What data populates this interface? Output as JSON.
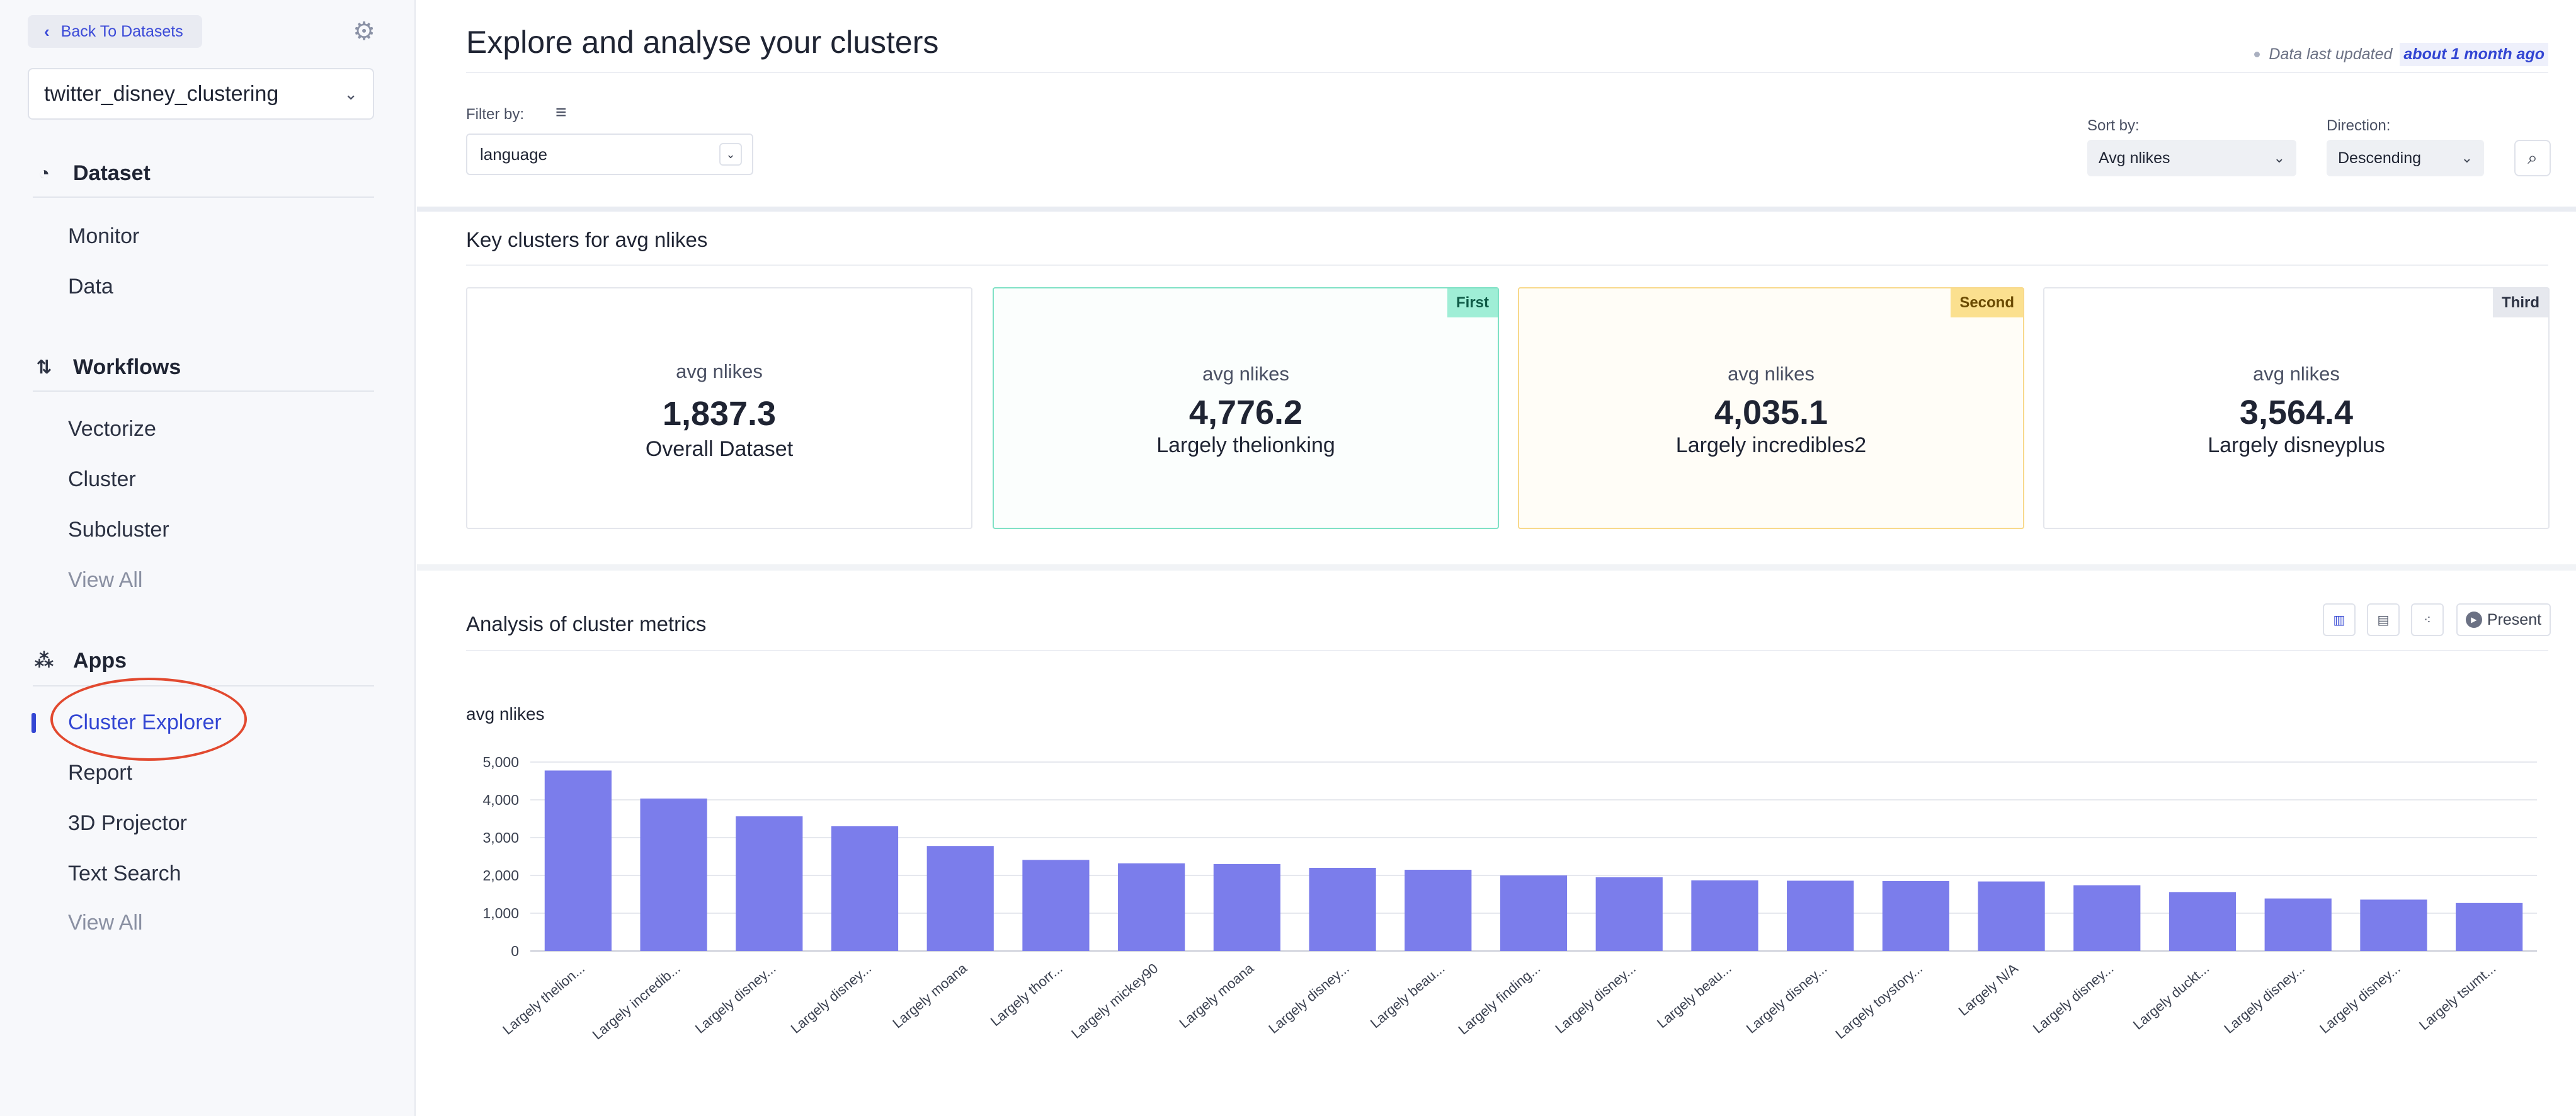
{
  "sidebar": {
    "back_label": "Back To Datasets",
    "dataset_name": "twitter_disney_clustering",
    "sections": {
      "dataset": {
        "title": "Dataset",
        "items": [
          "Monitor",
          "Data"
        ]
      },
      "workflows": {
        "title": "Workflows",
        "items": [
          "Vectorize",
          "Cluster",
          "Subcluster"
        ],
        "view_all": "View All"
      },
      "apps": {
        "title": "Apps",
        "items": [
          "Cluster Explorer",
          "Report",
          "3D Projector",
          "Text Search"
        ],
        "view_all": "View All",
        "active": "Cluster Explorer"
      }
    }
  },
  "header": {
    "title": "Explore and analyse your clusters",
    "updated_prefix": "Data last updated",
    "updated_value": "about 1 month ago"
  },
  "filters": {
    "filter_label": "Filter by:",
    "filter_value": "language",
    "sort_label": "Sort by:",
    "sort_value": "Avg nlikes",
    "direction_label": "Direction:",
    "direction_value": "Descending"
  },
  "key_clusters": {
    "title": "Key clusters for avg nlikes",
    "cards": [
      {
        "metric": "avg nlikes",
        "value": "1,837.3",
        "name": "Overall Dataset",
        "badge": ""
      },
      {
        "metric": "avg nlikes",
        "value": "4,776.2",
        "name": "Largely thelionking",
        "badge": "First"
      },
      {
        "metric": "avg nlikes",
        "value": "4,035.1",
        "name": "Largely incredibles2",
        "badge": "Second"
      },
      {
        "metric": "avg nlikes",
        "value": "3,564.4",
        "name": "Largely disneyplus",
        "badge": "Third"
      }
    ]
  },
  "analysis": {
    "title": "Analysis of cluster metrics",
    "present_label": "Present"
  },
  "colors": {
    "accent": "#3346d3",
    "bar": "#7b7deb"
  },
  "chart_data": {
    "type": "bar",
    "title": "avg nlikes",
    "xlabel": "",
    "ylabel": "",
    "ylim": [
      0,
      5000
    ],
    "yticks": [
      "0",
      "1,000",
      "2,000",
      "3,000",
      "4,000",
      "5,000"
    ],
    "grid": true,
    "categories": [
      "Largely thelion...",
      "Largely incredib...",
      "Largely disney...",
      "Largely disney...",
      "Largely moana",
      "Largely thorr...",
      "Largely mickey90",
      "Largely moana",
      "Largely disney...",
      "Largely beau...",
      "Largely finding...",
      "Largely disney...",
      "Largely beau...",
      "Largely disney...",
      "Largely toystory...",
      "Largely N/A",
      "Largely disney...",
      "Largely duckt...",
      "Largely disney...",
      "Largely disney...",
      "Largely tsumt..."
    ],
    "values": [
      4776,
      4035,
      3564,
      3300,
      2780,
      2410,
      2320,
      2300,
      2200,
      2150,
      2000,
      1950,
      1870,
      1860,
      1850,
      1840,
      1740,
      1560,
      1390,
      1360,
      1270
    ]
  }
}
